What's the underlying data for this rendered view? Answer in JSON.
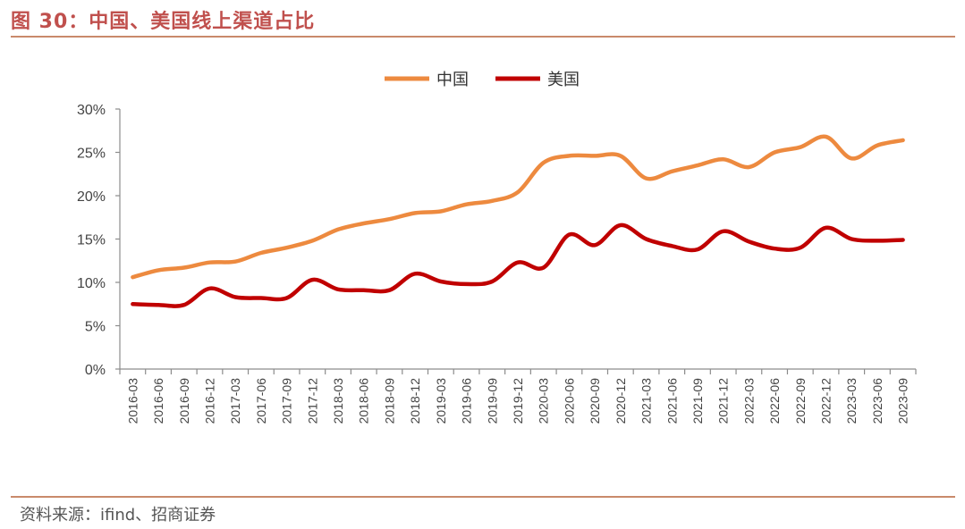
{
  "figure": {
    "title": "图 30：中国、美国线上渠道占比",
    "source": "资料来源：ifind、招商证券"
  },
  "chart_data": {
    "type": "line",
    "title": "图 30：中国、美国线上渠道占比",
    "xlabel": "",
    "ylabel": "",
    "ylim": [
      0,
      30
    ],
    "yticks": [
      "0%",
      "5%",
      "10%",
      "15%",
      "20%",
      "25%",
      "30%"
    ],
    "categories": [
      "2016-03",
      "2016-06",
      "2016-09",
      "2016-12",
      "2017-03",
      "2017-06",
      "2017-09",
      "2017-12",
      "2018-03",
      "2018-06",
      "2018-09",
      "2018-12",
      "2019-03",
      "2019-06",
      "2019-09",
      "2019-12",
      "2020-03",
      "2020-06",
      "2020-09",
      "2020-12",
      "2021-03",
      "2021-06",
      "2021-09",
      "2021-12",
      "2022-03",
      "2022-06",
      "2022-09",
      "2022-12",
      "2023-03",
      "2023-06",
      "2023-09"
    ],
    "series": [
      {
        "name": "中国",
        "color": "#ed8a3f",
        "values": [
          10.6,
          11.4,
          11.7,
          12.3,
          12.4,
          13.4,
          14.0,
          14.8,
          16.1,
          16.8,
          17.3,
          18.0,
          18.2,
          19.0,
          19.4,
          20.4,
          23.8,
          24.6,
          24.6,
          24.6,
          22.0,
          22.8,
          23.5,
          24.2,
          23.3,
          25.0,
          25.6,
          26.8,
          24.3,
          25.8,
          26.4
        ]
      },
      {
        "name": "美国",
        "color": "#c00000",
        "values": [
          7.5,
          7.4,
          7.4,
          9.3,
          8.3,
          8.2,
          8.2,
          10.3,
          9.2,
          9.1,
          9.1,
          11.0,
          10.1,
          9.8,
          10.1,
          12.3,
          11.7,
          15.5,
          14.3,
          16.6,
          15.0,
          14.2,
          13.8,
          15.9,
          14.7,
          13.9,
          14.0,
          16.3,
          15.0,
          14.8,
          14.9
        ]
      }
    ],
    "legend": "top-center",
    "grid": false
  }
}
